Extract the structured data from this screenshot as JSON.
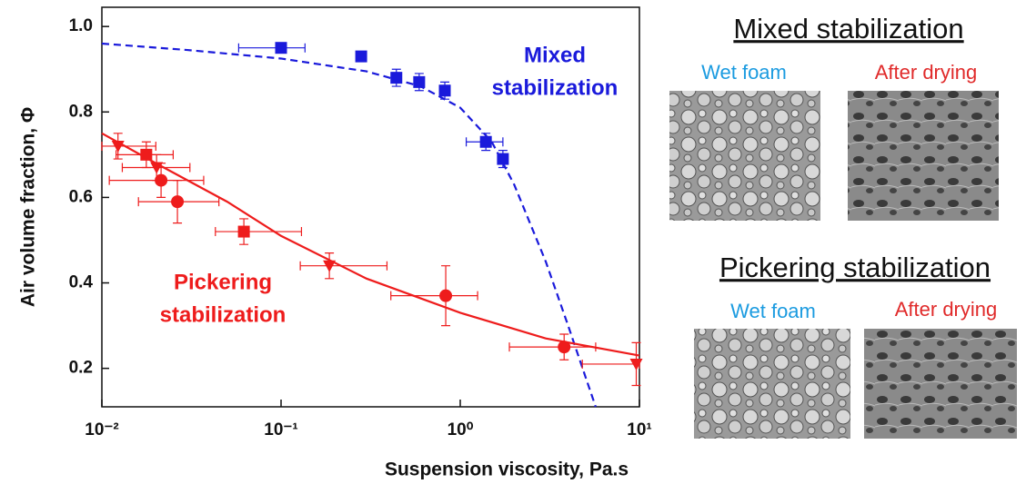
{
  "chart_data": {
    "type": "scatter",
    "xlabel": "Suspension viscosity, Pa.s",
    "ylabel": "Air volume fraction, Φ",
    "xlim": [
      0.01,
      10
    ],
    "xscale": "log",
    "ylim": [
      0.11,
      1.045
    ],
    "xticks": [
      {
        "value": 0.01,
        "label": "10⁻²"
      },
      {
        "value": 0.1,
        "label": "10⁻¹"
      },
      {
        "value": 1,
        "label": "10⁰"
      },
      {
        "value": 10,
        "label": "10¹"
      }
    ],
    "yticks": [
      0.2,
      0.4,
      0.6,
      0.8,
      {
        "value": 1,
        "label": "1.0"
      }
    ],
    "series": [
      {
        "color": "#1a1adb",
        "x": [
          0.1,
          0.28,
          0.44,
          0.59,
          0.82,
          1.39,
          1.73
        ],
        "y": [
          0.95,
          0.93,
          0.88,
          0.87,
          0.85,
          0.73,
          0.69
        ],
        "yerr": [
          0.01,
          0.01,
          0.02,
          0.02,
          0.02,
          0.02,
          0.02
        ],
        "xerr_low": [
          0.058,
          null,
          null,
          null,
          null,
          1.08,
          null
        ],
        "xerr_high": [
          0.136,
          null,
          null,
          null,
          null,
          1.73,
          null
        ],
        "markers": [
          "square",
          "square",
          "square",
          "square",
          "square",
          "square",
          "square"
        ],
        "fit": {
          "dash": true,
          "x": [
            0.01,
            0.03,
            0.1,
            0.3,
            0.6,
            1,
            1.5,
            2,
            3,
            4,
            5,
            5.7
          ],
          "y": [
            0.96,
            0.945,
            0.925,
            0.895,
            0.86,
            0.81,
            0.73,
            0.63,
            0.45,
            0.3,
            0.18,
            0.11
          ]
        }
      },
      {
        "color": "#ee1c1c",
        "x": [
          0.0123,
          0.0177,
          0.0202,
          0.0214,
          0.0264,
          0.062,
          0.186,
          0.83,
          3.8,
          9.6
        ],
        "y": [
          0.72,
          0.7,
          0.67,
          0.64,
          0.59,
          0.52,
          0.44,
          0.37,
          0.25,
          0.21
        ],
        "yerr": [
          0.03,
          0.03,
          0.03,
          0.04,
          0.05,
          0.03,
          0.03,
          0.07,
          0.03,
          0.05
        ],
        "xerr_low": [
          0.01,
          0.012,
          0.013,
          0.011,
          0.016,
          0.043,
          0.128,
          0.41,
          1.88,
          4.8
        ],
        "xerr_high": [
          0.02,
          0.025,
          0.031,
          0.037,
          0.045,
          0.13,
          0.39,
          1.25,
          5.7,
          10
        ],
        "markers": [
          "triangle",
          "square",
          "triangle",
          "circle",
          "circle",
          "square",
          "triangle",
          "circle",
          "circle",
          "triangle"
        ],
        "fit": {
          "dash": false,
          "x": [
            0.01,
            0.02,
            0.05,
            0.1,
            0.3,
            1,
            3,
            10
          ],
          "y": [
            0.75,
            0.68,
            0.59,
            0.51,
            0.41,
            0.33,
            0.27,
            0.23
          ]
        }
      }
    ],
    "annotations": [
      {
        "lines": [
          "Mixed",
          "stabilization"
        ],
        "color": "#1a1adb"
      },
      {
        "lines": [
          "Pickering",
          "stabilization"
        ],
        "color": "#ee1c1c"
      }
    ]
  },
  "panels": [
    {
      "title": "Mixed stabilization",
      "left": "Wet foam",
      "right": "After drying"
    },
    {
      "title": "Pickering stabilization",
      "left": "Wet foam",
      "right": "After drying"
    }
  ]
}
